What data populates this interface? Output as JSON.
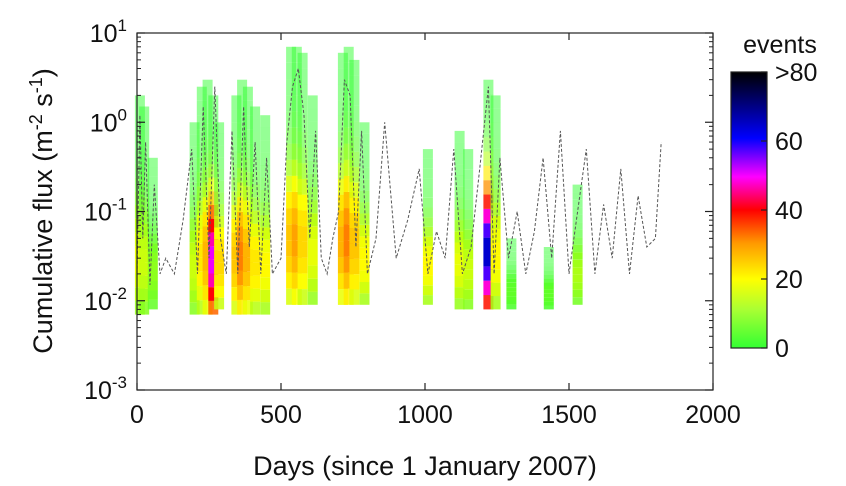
{
  "chart_data": {
    "type": "heatmap",
    "xlabel": "Days (since 1 January 2007)",
    "ylabel": "Cumulative flux (m",
    "ylabel_sup1": "-2",
    "ylabel_mid": " s",
    "ylabel_sup2": "-1",
    "ylabel_end": ")",
    "x_scale": "linear",
    "y_scale": "log",
    "xlim": [
      0,
      2000
    ],
    "ylim": [
      0.001,
      10
    ],
    "x_ticks": [
      {
        "value": 0,
        "label": "0"
      },
      {
        "value": 500,
        "label": "500"
      },
      {
        "value": 1000,
        "label": "1000"
      },
      {
        "value": 1500,
        "label": "1500"
      },
      {
        "value": 2000,
        "label": "2000"
      }
    ],
    "y_ticks": [
      {
        "value": 0.001,
        "base": "10",
        "exp": "-3"
      },
      {
        "value": 0.01,
        "base": "10",
        "exp": "-2"
      },
      {
        "value": 0.1,
        "base": "10",
        "exp": "-1"
      },
      {
        "value": 1,
        "base": "10",
        "exp": "0"
      },
      {
        "value": 10,
        "base": "10",
        "exp": "1"
      }
    ],
    "grid": false,
    "colorbar": {
      "title": "events",
      "range": [
        0,
        80
      ],
      "ticks": [
        {
          "value": 0,
          "label": "0"
        },
        {
          "value": 20,
          "label": "20"
        },
        {
          "value": 40,
          "label": "40"
        },
        {
          "value": 60,
          "label": "60"
        },
        {
          "value": 80,
          "label": ">80"
        }
      ],
      "colors": [
        "#33ff33",
        "#ffff00",
        "#ff8800",
        "#ff0000",
        "#ff00ff",
        "#0000ff",
        "#000000"
      ]
    },
    "heatmap_columns": [
      {
        "x": 10,
        "y_min": 0.007,
        "y_max": 2.0,
        "peak": 12
      },
      {
        "x": 25,
        "y_min": 0.007,
        "y_max": 1.5,
        "peak": 10
      },
      {
        "x": 55,
        "y_min": 0.008,
        "y_max": 0.4,
        "peak": 6
      },
      {
        "x": 200,
        "y_min": 0.007,
        "y_max": 1.0,
        "peak": 10
      },
      {
        "x": 225,
        "y_min": 0.007,
        "y_max": 2.5,
        "peak": 16
      },
      {
        "x": 245,
        "y_min": 0.007,
        "y_max": 3.0,
        "peak": 22
      },
      {
        "x": 265,
        "y_min": 0.007,
        "y_max": 2.0,
        "peak": 55
      },
      {
        "x": 285,
        "y_min": 0.008,
        "y_max": 1.0,
        "peak": 18
      },
      {
        "x": 345,
        "y_min": 0.007,
        "y_max": 2.0,
        "peak": 20
      },
      {
        "x": 365,
        "y_min": 0.007,
        "y_max": 3.0,
        "peak": 28
      },
      {
        "x": 385,
        "y_min": 0.007,
        "y_max": 2.5,
        "peak": 22
      },
      {
        "x": 410,
        "y_min": 0.007,
        "y_max": 1.5,
        "peak": 16
      },
      {
        "x": 445,
        "y_min": 0.007,
        "y_max": 1.2,
        "peak": 14
      },
      {
        "x": 535,
        "y_min": 0.009,
        "y_max": 7.0,
        "peak": 20
      },
      {
        "x": 555,
        "y_min": 0.009,
        "y_max": 7.0,
        "peak": 24
      },
      {
        "x": 575,
        "y_min": 0.009,
        "y_max": 6.0,
        "peak": 18
      },
      {
        "x": 610,
        "y_min": 0.009,
        "y_max": 2.0,
        "peak": 12
      },
      {
        "x": 715,
        "y_min": 0.009,
        "y_max": 6.0,
        "peak": 22
      },
      {
        "x": 735,
        "y_min": 0.009,
        "y_max": 7.0,
        "peak": 28
      },
      {
        "x": 755,
        "y_min": 0.009,
        "y_max": 5.0,
        "peak": 20
      },
      {
        "x": 790,
        "y_min": 0.009,
        "y_max": 1.0,
        "peak": 14
      },
      {
        "x": 1010,
        "y_min": 0.009,
        "y_max": 0.5,
        "peak": 14
      },
      {
        "x": 1120,
        "y_min": 0.008,
        "y_max": 0.8,
        "peak": 12
      },
      {
        "x": 1150,
        "y_min": 0.008,
        "y_max": 0.5,
        "peak": 10
      },
      {
        "x": 1220,
        "y_min": 0.008,
        "y_max": 3.0,
        "peak": 70
      },
      {
        "x": 1245,
        "y_min": 0.008,
        "y_max": 2.0,
        "peak": 14
      },
      {
        "x": 1530,
        "y_min": 0.009,
        "y_max": 0.2,
        "peak": 8
      },
      {
        "x": 1300,
        "y_min": 0.008,
        "y_max": 0.05,
        "peak": 3
      },
      {
        "x": 1430,
        "y_min": 0.008,
        "y_max": 0.04,
        "peak": 3
      }
    ],
    "dashed_series": {
      "name": "",
      "x": [
        0,
        10,
        20,
        30,
        45,
        60,
        80,
        100,
        130,
        160,
        190,
        210,
        230,
        250,
        270,
        290,
        310,
        330,
        350,
        370,
        390,
        410,
        430,
        450,
        470,
        500,
        520,
        540,
        560,
        580,
        600,
        620,
        640,
        660,
        680,
        700,
        720,
        740,
        760,
        780,
        800,
        830,
        860,
        900,
        940,
        980,
        1010,
        1040,
        1070,
        1100,
        1130,
        1160,
        1190,
        1220,
        1240,
        1260,
        1290,
        1320,
        1350,
        1380,
        1410,
        1440,
        1470,
        1500,
        1530,
        1560,
        1590,
        1620,
        1650,
        1680,
        1710,
        1740,
        1770,
        1800,
        1820
      ],
      "y": [
        0.02,
        1.2,
        0.05,
        0.6,
        0.015,
        0.2,
        0.02,
        0.03,
        0.02,
        0.08,
        0.5,
        0.02,
        1.5,
        0.03,
        2.5,
        0.05,
        0.02,
        0.8,
        0.02,
        1.5,
        0.04,
        0.6,
        0.02,
        0.4,
        0.02,
        0.03,
        0.6,
        2.5,
        4.0,
        1.2,
        0.05,
        0.8,
        0.03,
        0.02,
        0.05,
        0.1,
        3.0,
        2.0,
        0.04,
        0.8,
        0.02,
        0.05,
        1.0,
        0.03,
        0.08,
        0.3,
        0.02,
        0.06,
        0.03,
        0.5,
        0.02,
        0.04,
        0.3,
        2.5,
        0.02,
        0.4,
        0.03,
        0.1,
        0.02,
        0.06,
        0.4,
        0.03,
        0.8,
        0.02,
        0.1,
        0.5,
        0.02,
        0.12,
        0.03,
        0.3,
        0.02,
        0.15,
        0.04,
        0.05,
        0.6
      ]
    }
  }
}
